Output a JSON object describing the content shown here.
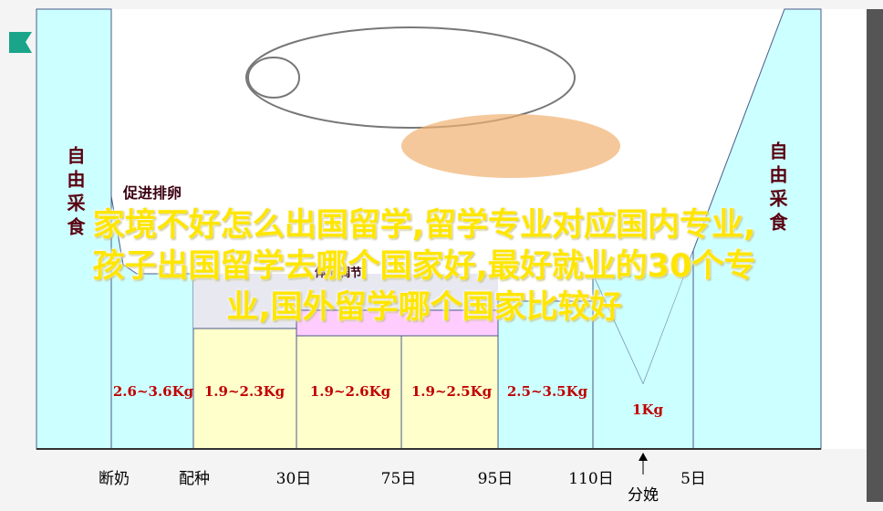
{
  "diagram": {
    "side_labels": {
      "left": "自由采食",
      "right": "自由采食"
    },
    "stage_labels": {
      "ovulation": "促进排卵",
      "body_condition": "体形调节"
    },
    "feed_amounts": [
      "2.6~3.6Kg",
      "1.9~2.3Kg",
      "1.9~2.6Kg",
      "1.9~2.5Kg",
      "2.5~3.5Kg",
      "1Kg"
    ],
    "timeline": [
      "断奶",
      "配种",
      "30日",
      "75日",
      "95日",
      "110日",
      "5日"
    ],
    "farrowing": "分娩"
  },
  "overlay": {
    "lines": [
      "家境不好怎么出国留学,留学专业对应国内专业,",
      "孩子出国留学去哪个国家好,最好就业的30个专",
      "业,国外留学哪个国家比较好"
    ]
  }
}
